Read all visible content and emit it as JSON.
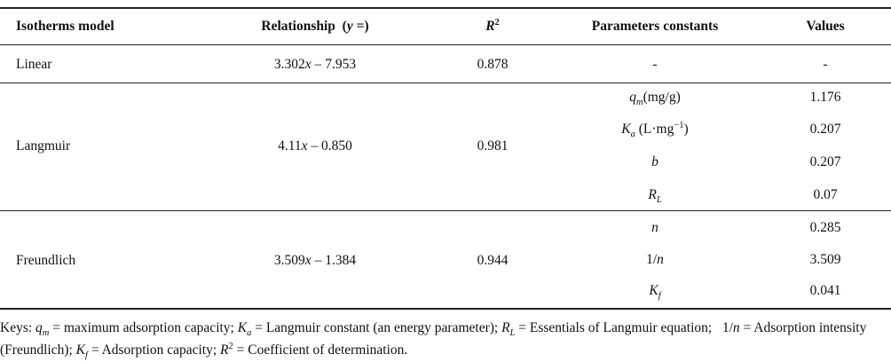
{
  "table": {
    "header": {
      "model": "Isotherms model",
      "relationship": [
        "Relationship  (",
        "y",
        " =)"
      ],
      "r2": [
        "R",
        "2"
      ],
      "parameters": "Parameters constants",
      "values": "Values"
    },
    "rows": [
      {
        "model": "Linear",
        "relationship": [
          "3.302",
          "x",
          " – 7.953"
        ],
        "r2": "0.878",
        "parameters": [
          [
            "-"
          ]
        ],
        "values": [
          "-"
        ]
      },
      {
        "model": "Langmuir",
        "relationship": [
          "4.11",
          "x",
          " – 0.850"
        ],
        "r2": "0.981",
        "parameters": [
          [
            "q",
            "m",
            "(mg/g)"
          ],
          [
            "K",
            "a",
            " (L·mg",
            "−1",
            ")"
          ],
          [
            "b"
          ],
          [
            "R",
            "L"
          ]
        ],
        "values": [
          "1.176",
          "0.207",
          "0.207",
          "0.07"
        ]
      },
      {
        "model": "Freundlich",
        "relationship": [
          "3.509",
          "x",
          " – 1.384"
        ],
        "r2": "0.944",
        "parameters": [
          [
            "n"
          ],
          [
            "1/",
            "n"
          ],
          [
            "K",
            "f"
          ]
        ],
        "values": [
          "0.285",
          "3.509",
          "0.041"
        ]
      }
    ]
  },
  "keys": [
    "Keys: ",
    "q",
    "m",
    " = maximum adsorption capacity; ",
    "K",
    "a",
    " = Langmuir constant (an energy parameter); ",
    "R",
    "L",
    " = Essentials of Langmuir equation;   1/",
    "n",
    " = Adsorption intensity (Freundlich); ",
    "K",
    "f",
    " = Adsorption capacity; ",
    "R",
    "2",
    " = Coefficient of determination."
  ]
}
